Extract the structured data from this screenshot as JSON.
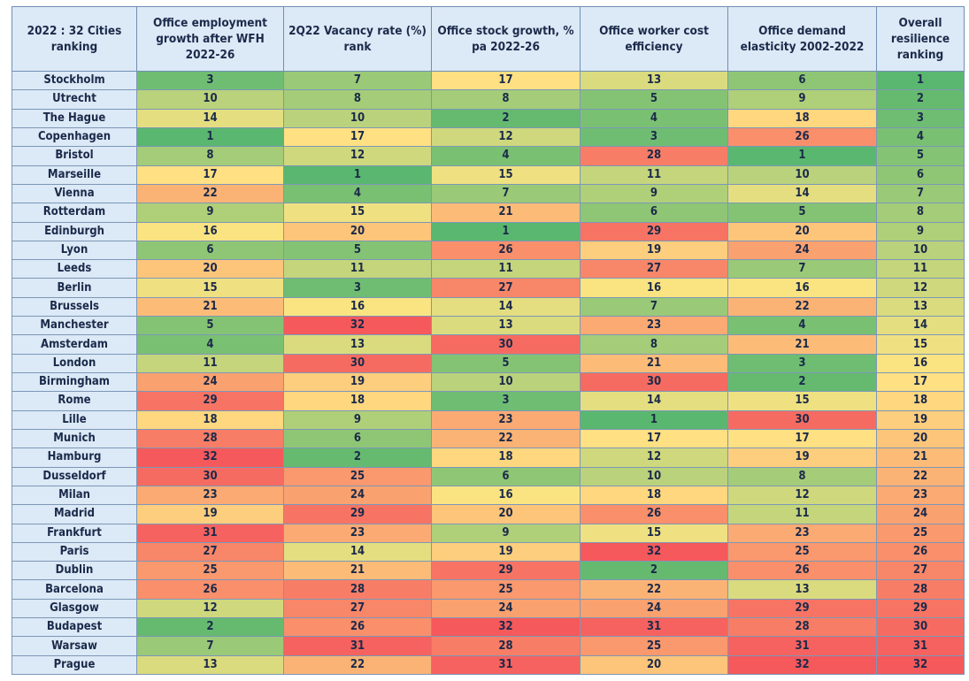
{
  "table": {
    "columns": [
      "2022 : 32 Cities ranking",
      "Office employment growth after WFH 2022-26",
      "2Q22 Vacancy rate (%) rank",
      "Office stock growth, % pa 2022-26",
      "Office worker cost efficiency",
      "Office demand elasticity 2002-2022",
      "Overall resilience ranking"
    ],
    "rows": [
      {
        "city": "Stockholm",
        "values": [
          3,
          7,
          17,
          13,
          6,
          1
        ]
      },
      {
        "city": "Utrecht",
        "values": [
          10,
          8,
          8,
          5,
          9,
          2
        ]
      },
      {
        "city": "The Hague",
        "values": [
          14,
          10,
          2,
          4,
          18,
          3
        ]
      },
      {
        "city": "Copenhagen",
        "values": [
          1,
          17,
          12,
          3,
          26,
          4
        ]
      },
      {
        "city": "Bristol",
        "values": [
          8,
          12,
          4,
          28,
          1,
          5
        ]
      },
      {
        "city": "Marseille",
        "values": [
          17,
          1,
          15,
          11,
          10,
          6
        ]
      },
      {
        "city": "Vienna",
        "values": [
          22,
          4,
          7,
          9,
          14,
          7
        ]
      },
      {
        "city": "Rotterdam",
        "values": [
          9,
          15,
          21,
          6,
          5,
          8
        ]
      },
      {
        "city": "Edinburgh",
        "values": [
          16,
          20,
          1,
          29,
          20,
          9
        ]
      },
      {
        "city": "Lyon",
        "values": [
          6,
          5,
          26,
          19,
          24,
          10
        ]
      },
      {
        "city": "Leeds",
        "values": [
          20,
          11,
          11,
          27,
          7,
          11
        ]
      },
      {
        "city": "Berlin",
        "values": [
          15,
          3,
          27,
          16,
          16,
          12
        ]
      },
      {
        "city": "Brussels",
        "values": [
          21,
          16,
          14,
          7,
          22,
          13
        ]
      },
      {
        "city": "Manchester",
        "values": [
          5,
          32,
          13,
          23,
          4,
          14
        ]
      },
      {
        "city": "Amsterdam",
        "values": [
          4,
          13,
          30,
          8,
          21,
          15
        ]
      },
      {
        "city": "London",
        "values": [
          11,
          30,
          5,
          21,
          3,
          16
        ]
      },
      {
        "city": "Birmingham",
        "values": [
          24,
          19,
          10,
          30,
          2,
          17
        ]
      },
      {
        "city": "Rome",
        "values": [
          29,
          18,
          3,
          14,
          15,
          18
        ]
      },
      {
        "city": "Lille",
        "values": [
          18,
          9,
          23,
          1,
          30,
          19
        ]
      },
      {
        "city": "Munich",
        "values": [
          28,
          6,
          22,
          17,
          17,
          20
        ]
      },
      {
        "city": "Hamburg",
        "values": [
          32,
          2,
          18,
          12,
          19,
          21
        ]
      },
      {
        "city": "Dusseldorf",
        "values": [
          30,
          25,
          6,
          10,
          8,
          22
        ]
      },
      {
        "city": "Milan",
        "values": [
          23,
          24,
          16,
          18,
          12,
          23
        ]
      },
      {
        "city": "Madrid",
        "values": [
          19,
          29,
          20,
          26,
          11,
          24
        ]
      },
      {
        "city": "Frankfurt",
        "values": [
          31,
          23,
          9,
          15,
          23,
          25
        ]
      },
      {
        "city": "Paris",
        "values": [
          27,
          14,
          19,
          32,
          25,
          26
        ]
      },
      {
        "city": "Dublin",
        "values": [
          25,
          21,
          29,
          2,
          26,
          27
        ]
      },
      {
        "city": "Barcelona",
        "values": [
          26,
          28,
          25,
          22,
          13,
          28
        ]
      },
      {
        "city": "Glasgow",
        "values": [
          12,
          27,
          24,
          24,
          29,
          29
        ]
      },
      {
        "city": "Budapest",
        "values": [
          2,
          26,
          32,
          31,
          28,
          30
        ]
      },
      {
        "city": "Warsaw",
        "values": [
          7,
          31,
          28,
          25,
          31,
          31
        ]
      },
      {
        "city": "Prague",
        "values": [
          13,
          22,
          31,
          20,
          32,
          32
        ]
      }
    ]
  },
  "heatmap_scale": {
    "min": 1,
    "max": 32,
    "colors": [
      "#5ab76f",
      "#ffe583",
      "#f5595c"
    ]
  }
}
